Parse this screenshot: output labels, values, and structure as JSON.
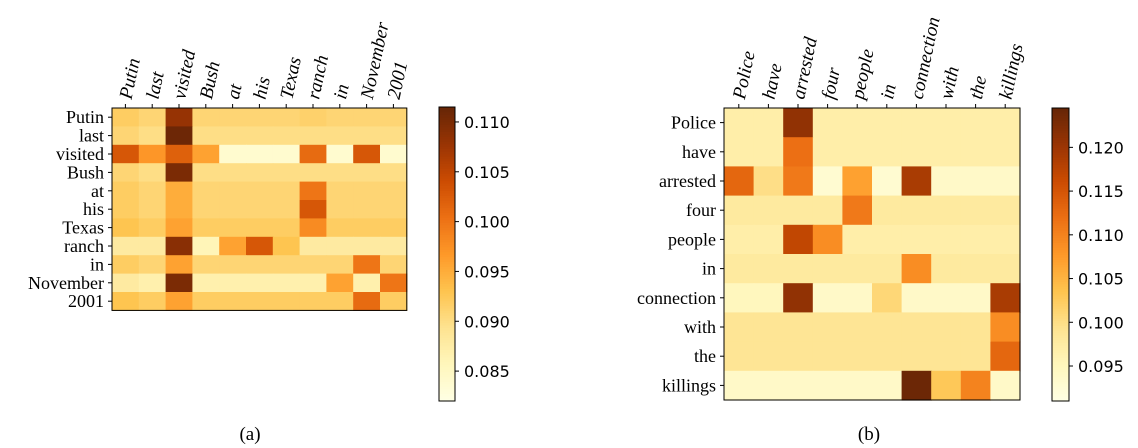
{
  "chart_data": [
    {
      "type": "heatmap",
      "caption": "(a)",
      "x_labels": [
        "Putin",
        "last",
        "visited",
        "Bush",
        "at",
        "his",
        "Texas",
        "ranch",
        "in",
        "November",
        "2001"
      ],
      "y_labels": [
        "Putin",
        "last",
        "visited",
        "Bush",
        "at",
        "his",
        "Texas",
        "ranch",
        "in",
        "November",
        "2001"
      ],
      "values": [
        [
          0.092,
          0.091,
          0.108,
          0.091,
          0.091,
          0.091,
          0.091,
          0.0915,
          0.091,
          0.091,
          0.091
        ],
        [
          0.091,
          0.09,
          0.111,
          0.09,
          0.09,
          0.09,
          0.09,
          0.09,
          0.09,
          0.09,
          0.09
        ],
        [
          0.103,
          0.097,
          0.102,
          0.096,
          0.084,
          0.084,
          0.084,
          0.101,
          0.084,
          0.103,
          0.084
        ],
        [
          0.091,
          0.09,
          0.11,
          0.09,
          0.09,
          0.09,
          0.09,
          0.09,
          0.09,
          0.09,
          0.09
        ],
        [
          0.092,
          0.091,
          0.095,
          0.091,
          0.091,
          0.091,
          0.091,
          0.1,
          0.091,
          0.091,
          0.091
        ],
        [
          0.092,
          0.091,
          0.095,
          0.091,
          0.091,
          0.091,
          0.091,
          0.103,
          0.091,
          0.091,
          0.091
        ],
        [
          0.093,
          0.092,
          0.096,
          0.092,
          0.092,
          0.092,
          0.092,
          0.098,
          0.092,
          0.092,
          0.092
        ],
        [
          0.088,
          0.088,
          0.109,
          0.086,
          0.096,
          0.103,
          0.093,
          0.088,
          0.088,
          0.088,
          0.088
        ],
        [
          0.092,
          0.091,
          0.096,
          0.091,
          0.091,
          0.091,
          0.091,
          0.091,
          0.091,
          0.1,
          0.091
        ],
        [
          0.088,
          0.087,
          0.11,
          0.087,
          0.087,
          0.087,
          0.087,
          0.087,
          0.096,
          0.087,
          0.1
        ],
        [
          0.093,
          0.092,
          0.096,
          0.092,
          0.092,
          0.092,
          0.092,
          0.092,
          0.092,
          0.101,
          0.092
        ]
      ],
      "vmin": 0.082,
      "vmax": 0.1115,
      "colorbar_ticks": [
        0.085,
        0.09,
        0.095,
        0.1,
        0.105,
        0.11
      ],
      "colorbar_tick_labels": [
        "0.085",
        "0.090",
        "0.095",
        "0.100",
        "0.105",
        "0.110"
      ],
      "colormap": "YlOrBr",
      "x_tick_position": "top",
      "grid": false
    },
    {
      "type": "heatmap",
      "caption": "(b)",
      "x_labels": [
        "Police",
        "have",
        "arrested",
        "four",
        "people",
        "in",
        "connection",
        "with",
        "the",
        "killings"
      ],
      "y_labels": [
        "Police",
        "have",
        "arrested",
        "four",
        "people",
        "in",
        "connection",
        "with",
        "the",
        "killings"
      ],
      "values": [
        [
          0.097,
          0.097,
          0.121,
          0.097,
          0.097,
          0.097,
          0.097,
          0.097,
          0.097,
          0.097
        ],
        [
          0.097,
          0.097,
          0.112,
          0.097,
          0.097,
          0.097,
          0.097,
          0.097,
          0.097,
          0.097
        ],
        [
          0.113,
          0.1,
          0.111,
          0.093,
          0.107,
          0.093,
          0.119,
          0.094,
          0.094,
          0.094
        ],
        [
          0.098,
          0.098,
          0.098,
          0.098,
          0.111,
          0.098,
          0.098,
          0.098,
          0.098,
          0.098
        ],
        [
          0.097,
          0.097,
          0.117,
          0.109,
          0.097,
          0.097,
          0.097,
          0.097,
          0.097,
          0.097
        ],
        [
          0.098,
          0.098,
          0.098,
          0.098,
          0.098,
          0.098,
          0.109,
          0.098,
          0.098,
          0.098
        ],
        [
          0.095,
          0.095,
          0.121,
          0.094,
          0.094,
          0.101,
          0.094,
          0.094,
          0.094,
          0.119
        ],
        [
          0.099,
          0.099,
          0.099,
          0.099,
          0.099,
          0.099,
          0.099,
          0.099,
          0.099,
          0.109
        ],
        [
          0.099,
          0.099,
          0.099,
          0.099,
          0.099,
          0.099,
          0.099,
          0.099,
          0.099,
          0.113
        ],
        [
          0.094,
          0.094,
          0.094,
          0.094,
          0.094,
          0.094,
          0.124,
          0.103,
          0.11,
          0.094
        ]
      ],
      "vmin": 0.091,
      "vmax": 0.1245,
      "colorbar_ticks": [
        0.095,
        0.1,
        0.105,
        0.11,
        0.115,
        0.12
      ],
      "colorbar_tick_labels": [
        "0.095",
        "0.100",
        "0.105",
        "0.110",
        "0.115",
        "0.120"
      ],
      "colormap": "YlOrBr",
      "x_tick_position": "top",
      "grid": false
    }
  ]
}
